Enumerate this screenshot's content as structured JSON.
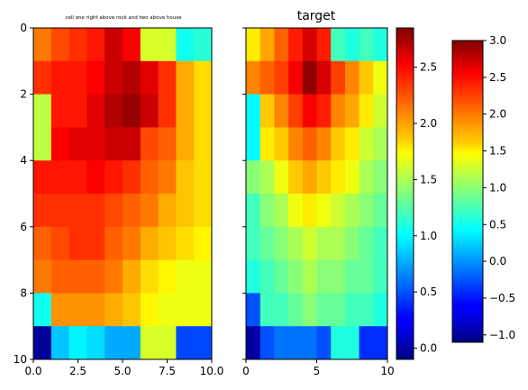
{
  "chart_data": [
    {
      "type": "heatmap",
      "title": "cell one right above rock and two above house",
      "x_ticks": [
        "0.0",
        "2.5",
        "5.0",
        "7.5",
        "10.0"
      ],
      "y_ticks": [
        "0",
        "2",
        "4",
        "6",
        "8",
        "10"
      ],
      "xlim": [
        0,
        10
      ],
      "ylim": [
        10,
        0
      ],
      "colorbar": {
        "ticks": [
          "3.0",
          "2.5",
          "2.0",
          "1.5",
          "1.0",
          "0.5",
          "0.0",
          "−0.5",
          "−1.0"
        ],
        "range": [
          -1.1,
          3.0
        ]
      },
      "values": [
        [
          2.0,
          2.2,
          2.3,
          2.4,
          2.7,
          2.5,
          1.3,
          1.3,
          0.5,
          0.6
        ],
        [
          2.3,
          2.4,
          2.4,
          2.5,
          2.7,
          2.8,
          2.6,
          2.3,
          1.8,
          1.6
        ],
        [
          1.2,
          2.4,
          2.4,
          2.6,
          2.8,
          2.9,
          2.7,
          2.3,
          1.8,
          1.6
        ],
        [
          1.2,
          2.5,
          2.6,
          2.6,
          2.7,
          2.7,
          2.2,
          2.1,
          1.8,
          1.6
        ],
        [
          2.4,
          2.4,
          2.4,
          2.5,
          2.4,
          2.3,
          2.1,
          2.0,
          1.7,
          1.6
        ],
        [
          2.3,
          2.3,
          2.3,
          2.3,
          2.2,
          2.1,
          2.0,
          1.8,
          1.7,
          1.6
        ],
        [
          2.1,
          2.2,
          2.3,
          2.3,
          2.1,
          2.0,
          1.8,
          1.7,
          1.6,
          1.5
        ],
        [
          2.0,
          2.1,
          2.1,
          2.1,
          2.0,
          1.8,
          1.6,
          1.5,
          1.4,
          1.4
        ],
        [
          0.5,
          1.9,
          1.9,
          1.9,
          1.8,
          1.7,
          1.5,
          1.4,
          1.4,
          1.4
        ],
        [
          -1.0,
          0.2,
          0.4,
          0.3,
          0.1,
          0.1,
          1.3,
          1.3,
          -0.3,
          -0.3
        ]
      ]
    },
    {
      "type": "heatmap",
      "title": "target",
      "x_ticks": [
        "0",
        "5",
        "10"
      ],
      "y_ticks": [],
      "xlim": [
        0,
        10
      ],
      "ylim": [
        10,
        0
      ],
      "colorbar": {
        "ticks": [
          "2.5",
          "2.0",
          "1.5",
          "1.0",
          "0.5",
          "0.0"
        ],
        "range": [
          -0.1,
          2.85
        ]
      },
      "values": [
        [
          1.8,
          2.0,
          2.2,
          2.4,
          2.6,
          2.4,
          1.2,
          1.1,
          1.2,
          1.1
        ],
        [
          2.1,
          2.2,
          2.3,
          2.5,
          2.8,
          2.6,
          2.3,
          2.1,
          1.9,
          1.7
        ],
        [
          1.0,
          1.9,
          2.1,
          2.3,
          2.5,
          2.4,
          2.1,
          2.0,
          1.8,
          1.6
        ],
        [
          1.0,
          1.8,
          1.9,
          2.1,
          2.2,
          2.1,
          1.9,
          1.8,
          1.6,
          1.5
        ],
        [
          1.4,
          1.5,
          1.7,
          1.9,
          2.0,
          1.9,
          1.8,
          1.7,
          1.5,
          1.4
        ],
        [
          1.2,
          1.4,
          1.5,
          1.7,
          1.8,
          1.7,
          1.6,
          1.5,
          1.4,
          1.3
        ],
        [
          1.2,
          1.3,
          1.4,
          1.5,
          1.6,
          1.5,
          1.5,
          1.4,
          1.3,
          1.2
        ],
        [
          1.1,
          1.2,
          1.3,
          1.4,
          1.5,
          1.4,
          1.4,
          1.3,
          1.3,
          1.2
        ],
        [
          0.5,
          1.2,
          1.2,
          1.3,
          1.4,
          1.3,
          1.3,
          1.2,
          1.2,
          1.1
        ],
        [
          0.0,
          0.5,
          0.6,
          0.6,
          0.6,
          0.5,
          1.1,
          1.1,
          0.4,
          0.4
        ]
      ]
    }
  ]
}
